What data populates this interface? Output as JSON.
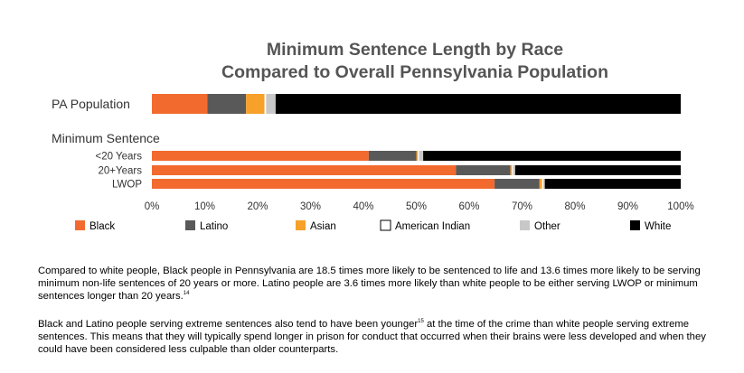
{
  "chart_data": {
    "type": "stacked-bar-horizontal",
    "title_line1": "Minimum Sentence Length by Race",
    "title_line2": "Compared to Overall Pennsylvania Population",
    "group_label": "Minimum Sentence",
    "xlim": [
      0,
      100
    ],
    "ticks": [
      "0%",
      "10%",
      "20%",
      "30%",
      "40%",
      "50%",
      "60%",
      "70%",
      "80%",
      "90%",
      "100%"
    ],
    "series": [
      {
        "name": "Black",
        "color": "#f26a2e"
      },
      {
        "name": "Latino",
        "color": "#595959"
      },
      {
        "name": "Asian",
        "color": "#f7a02a"
      },
      {
        "name": "American Indian",
        "color": "#ffffff"
      },
      {
        "name": "Other",
        "color": "#c8c8c8"
      },
      {
        "name": "White",
        "color": "#000000"
      }
    ],
    "rows": [
      {
        "label": "PA Population",
        "values": [
          10.5,
          7.3,
          3.5,
          0.3,
          1.8,
          76.6
        ]
      },
      {
        "label": "<20 Years",
        "values": [
          41,
          9,
          0.3,
          0.2,
          0.8,
          48.7
        ]
      },
      {
        "label": "20+Years",
        "values": [
          57.5,
          10.3,
          0.3,
          0.2,
          0.4,
          31.3
        ]
      },
      {
        "label": "LWOP",
        "values": [
          64.8,
          8.5,
          0.5,
          0.2,
          0.3,
          25.7
        ]
      }
    ]
  },
  "text": {
    "para1": "Compared to white people, Black people in Pennsylvania are 18.5 times more likely to be sentenced to life and 13.6 times more likely to be serving minimum non-life sentences of 20 years or more. Latino people are 3.6 times more likely than white people to be either serving LWOP or minimum sentences longer than 20 years.",
    "para1_note": "14",
    "para2_a": "Black and Latino people serving extreme sentences also tend to have been younger",
    "para2_note": "15",
    "para2_b": " at the time of the crime than white people serving extreme sentences. This means that they will typically spend longer in prison for conduct that occurred when their brains were less developed and when they could have been considered less culpable than older counterparts."
  }
}
